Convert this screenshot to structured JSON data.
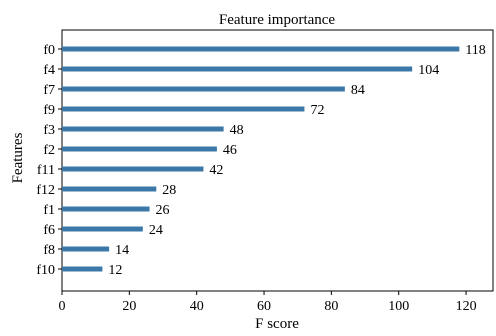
{
  "chart_data": {
    "type": "bar",
    "orientation": "horizontal",
    "title": "Feature importance",
    "xlabel": "F score",
    "ylabel": "Features",
    "categories": [
      "f0",
      "f4",
      "f7",
      "f9",
      "f3",
      "f2",
      "f11",
      "f12",
      "f1",
      "f6",
      "f8",
      "f10"
    ],
    "values": [
      118,
      104,
      84,
      72,
      48,
      46,
      42,
      28,
      26,
      24,
      14,
      12
    ],
    "value_labels": [
      "118",
      "104",
      "84",
      "72",
      "48",
      "46",
      "42",
      "28",
      "26",
      "24",
      "14",
      "12"
    ],
    "xlim": [
      0,
      128
    ],
    "xticks": [
      0,
      20,
      40,
      60,
      80,
      100,
      120
    ],
    "xtick_labels": [
      "0",
      "20",
      "40",
      "60",
      "80",
      "100",
      "120"
    ],
    "grid": false,
    "legend": "none",
    "bar_color": "#3b78a8"
  }
}
